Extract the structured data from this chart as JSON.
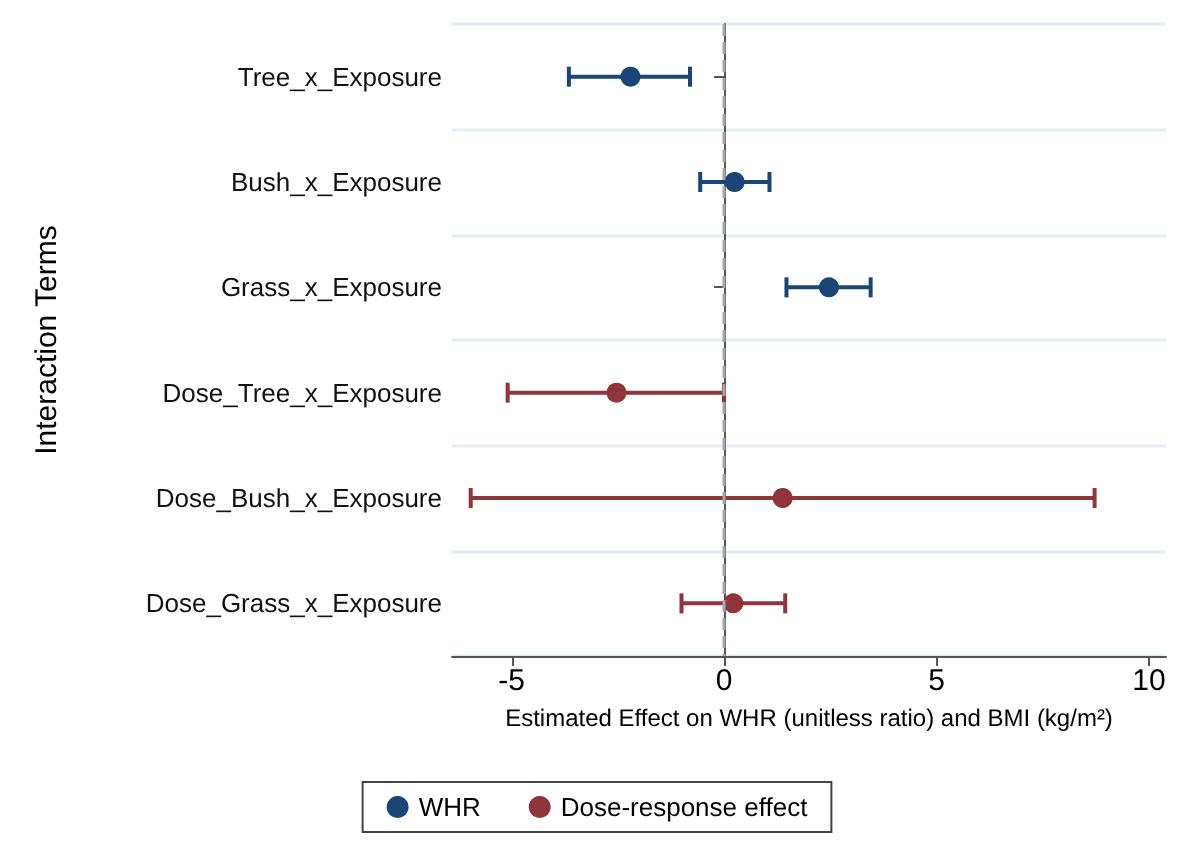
{
  "chart_data": {
    "type": "scatter",
    "orientation": "horizontal",
    "xlabel": "Estimated Effect on WHR (unitless ratio) and BMI (kg/m²)",
    "ylabel": "Interaction Terms",
    "categories": [
      "Tree_x_Exposure",
      "Bush_x_Exposure",
      "Grass_x_Exposure",
      "Dose_Tree_x_Exposure",
      "Dose_Bush_x_Exposure",
      "Dose_Grass_x_Exposure"
    ],
    "series": [
      {
        "name": "WHR",
        "color": "#1a4677",
        "values": [
          -2.2,
          0.25,
          2.47,
          null,
          null,
          null
        ],
        "errors": [
          [
            -3.65,
            -0.8
          ],
          [
            -0.56,
            1.07
          ],
          [
            1.47,
            3.45
          ],
          null,
          null,
          null
        ]
      },
      {
        "name": "Dose-response effect",
        "color": "#90353b",
        "values": [
          null,
          null,
          null,
          -2.53,
          1.38,
          0.22
        ],
        "errors": [
          null,
          null,
          null,
          [
            -5.09,
            0
          ],
          [
            -5.96,
            8.72
          ],
          [
            -1.0,
            1.44
          ]
        ]
      }
    ],
    "xlim": [
      -6.4,
      10.4
    ],
    "xticks": [
      -5,
      0,
      5,
      10
    ],
    "ref_lines": [
      {
        "axis": "x",
        "value": 0,
        "color": "#a6a6a6",
        "line_style": "dashed"
      }
    ],
    "grid": "y",
    "legend": "bottom",
    "marker": "circle"
  }
}
